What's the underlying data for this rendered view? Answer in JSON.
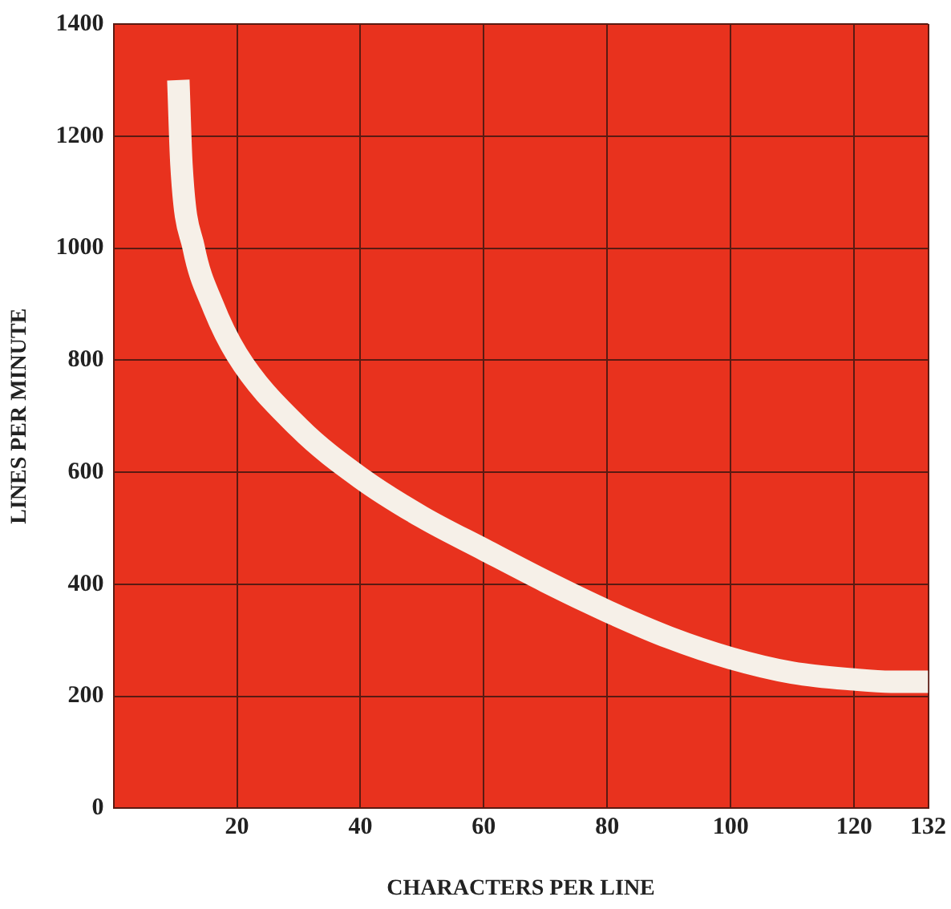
{
  "chart_data": {
    "type": "line",
    "xlabel": "CHARACTERS PER LINE",
    "ylabel": "LINES PER MINUTE",
    "xlim": [
      0,
      132
    ],
    "xticks": [
      20,
      40,
      60,
      80,
      100,
      120,
      132
    ],
    "ylim": [
      0,
      1400
    ],
    "yticks": [
      0,
      200,
      400,
      600,
      800,
      1000,
      1200,
      1400
    ],
    "grid": true,
    "marker": "none",
    "line_style": "solid",
    "series": [
      {
        "color": "#f6f0e8",
        "x": [
          10.5,
          11,
          13,
          16,
          20,
          30,
          40,
          50,
          60,
          70,
          80,
          90,
          100,
          110,
          120,
          126,
          132
        ],
        "values": [
          1300,
          1150,
          1000,
          900,
          810,
          680,
          590,
          520,
          462,
          405,
          352,
          305,
          268,
          242,
          230,
          226,
          226
        ]
      }
    ]
  }
}
